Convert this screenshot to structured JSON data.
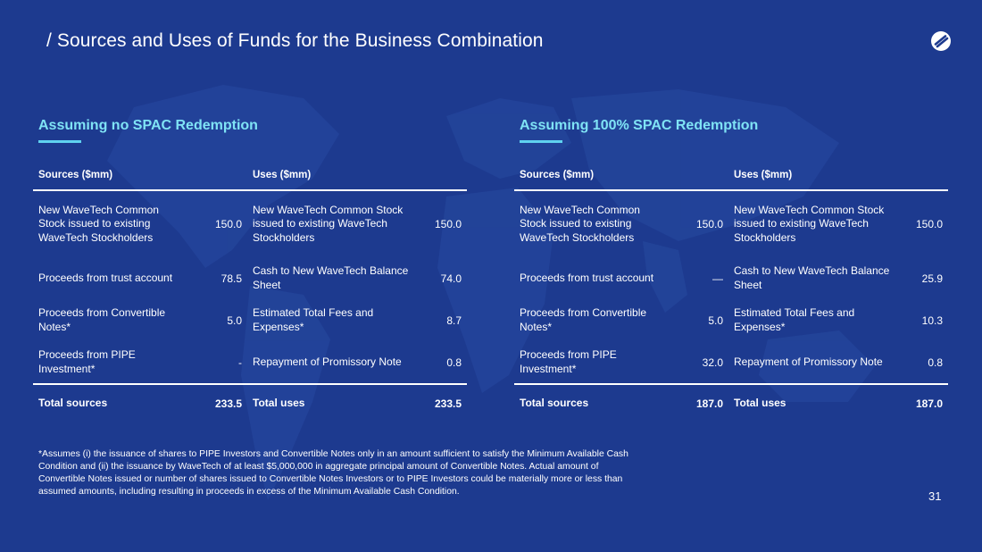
{
  "header": {
    "title": "/ Sources and Uses of Funds for the Business Combination",
    "logo_icon": "s-circle-logo-icon"
  },
  "colors": {
    "background": "#1d3a8f",
    "accent": "#5fd2f0",
    "heading": "#7fe3f5"
  },
  "panels": [
    {
      "heading": "Assuming no SPAC Redemption",
      "col_sources": "Sources ($mm)",
      "col_uses": "Uses ($mm)",
      "rows": [
        {
          "source": "New WaveTech Common Stock issued to existing WaveTech Stockholders",
          "source_value": "150.0",
          "use": "New WaveTech Common Stock issued to existing WaveTech Stockholders",
          "use_value": "150.0"
        },
        {
          "source": "Proceeds from trust account",
          "source_value": "78.5",
          "use": "Cash to New WaveTech Balance Sheet",
          "use_value": "74.0"
        },
        {
          "source": "Proceeds from Convertible Notes*",
          "source_value": "5.0",
          "use": "Estimated Total Fees and Expenses*",
          "use_value": "8.7"
        },
        {
          "source": "Proceeds from PIPE Investment*",
          "source_value": "-",
          "use": "Repayment of Promissory Note",
          "use_value": "0.8"
        }
      ],
      "total": {
        "source": "Total sources",
        "source_value": "233.5",
        "use": "Total uses",
        "use_value": "233.5"
      }
    },
    {
      "heading": "Assuming 100% SPAC Redemption",
      "col_sources": "Sources ($mm)",
      "col_uses": "Uses ($mm)",
      "rows": [
        {
          "source": "New WaveTech Common Stock issued to existing WaveTech Stockholders",
          "source_value": "150.0",
          "use": "New WaveTech Common Stock issued to existing WaveTech Stockholders",
          "use_value": "150.0"
        },
        {
          "source": "Proceeds from trust account",
          "source_value": "—",
          "use": "Cash to New WaveTech Balance Sheet",
          "use_value": "25.9"
        },
        {
          "source": "Proceeds from Convertible Notes*",
          "source_value": "5.0",
          "use": "Estimated Total Fees and Expenses*",
          "use_value": "10.3"
        },
        {
          "source": "Proceeds from PIPE Investment*",
          "source_value": "32.0",
          "use": "Repayment of Promissory Note",
          "use_value": "0.8"
        }
      ],
      "total": {
        "source": "Total sources",
        "source_value": "187.0",
        "use": "Total uses",
        "use_value": "187.0"
      }
    }
  ],
  "footnote": "*Assumes (i) the issuance of shares to PIPE Investors and Convertible Notes only in an amount sufficient to satisfy the Minimum Available Cash Condition and (ii) the issuance by WaveTech of at least $5,000,000 in aggregate principal amount of Convertible Notes. Actual amount of Convertible Notes issued or number of shares issued to Convertible Notes Investors or to PIPE Investors could be materially more or less than assumed amounts, including resulting in proceeds in excess of the Minimum Available Cash Condition.",
  "page_number": "31"
}
